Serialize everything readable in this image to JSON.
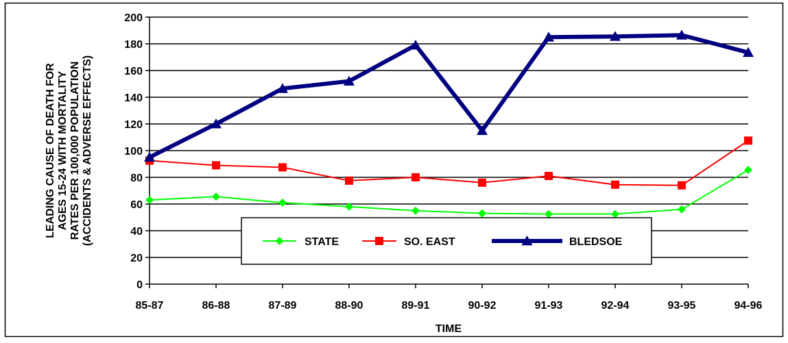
{
  "chart_data": {
    "type": "line",
    "xlabel": "TIME",
    "ylabel_lines": [
      "LEADING CAUSE OF DEATH FOR",
      "AGES 15-24 WITH MORTALITY",
      "RATES PER 100,000 POPULATION",
      "(ACCIDENTS & ADVERSE EFFECTS)"
    ],
    "categories": [
      "85-87",
      "86-88",
      "87-89",
      "88-90",
      "89-91",
      "90-92",
      "91-93",
      "92-94",
      "93-95",
      "94-96"
    ],
    "ylim": [
      0,
      200
    ],
    "yticks": [
      0,
      20,
      40,
      60,
      80,
      100,
      120,
      140,
      160,
      180,
      200
    ],
    "grid": "horizontal",
    "legend_position": "inside-bottom-center",
    "series": [
      {
        "name": "STATE",
        "color": "#00ff00",
        "marker": "diamond",
        "values": [
          63,
          65.5,
          61,
          58,
          55,
          53,
          52.5,
          52.5,
          56,
          85.5
        ]
      },
      {
        "name": "SO. EAST",
        "color": "#ff0000",
        "marker": "square",
        "values": [
          92.5,
          89,
          87.5,
          77.5,
          80,
          76,
          81,
          74.5,
          74,
          107.5
        ]
      },
      {
        "name": "BLEDSOE",
        "color": "#000080",
        "marker": "triangle",
        "values": [
          95,
          120,
          146.5,
          152,
          179,
          115,
          185,
          185.5,
          186.5,
          173.5
        ]
      }
    ]
  }
}
